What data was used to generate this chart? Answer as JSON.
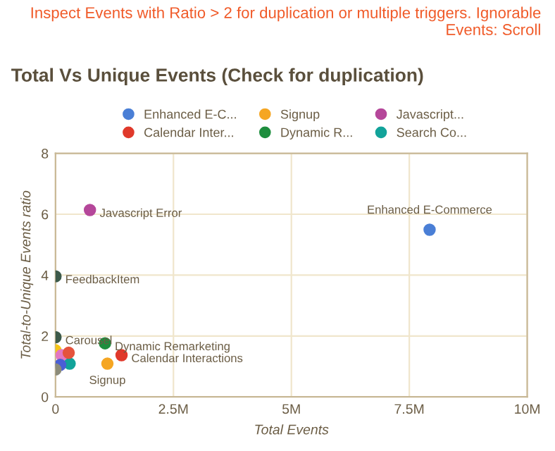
{
  "chart_data": {
    "type": "scatter",
    "title": "Total Vs Unique Events (Check for duplication)",
    "xlabel": "Total Events",
    "ylabel": "Total-to-Unique Events ratio",
    "annotations": [
      "Inspect Events with Ratio > 2 for duplication or multiple triggers. Ignorable Events: Scroll",
      {
        "text": "Enhanced E-Commerce",
        "x": 7930000,
        "y": 5.49
      },
      {
        "text": "Javascript Error",
        "x": 730000,
        "y": 6.14
      },
      {
        "text": "FeedbackItem",
        "x": 0,
        "y": 3.96
      },
      {
        "text": "Carousel",
        "x": 0,
        "y": 1.96
      },
      {
        "text": "Dynamic Remarketing",
        "x": 1050000,
        "y": 1.76
      },
      {
        "text": "Calendar Interactions",
        "x": 1400000,
        "y": 1.37
      },
      {
        "text": "Signup",
        "x": 1100000,
        "y": 1.09
      }
    ],
    "series": [
      {
        "name": "Enhanced E-C...",
        "color": "#4a7fd6",
        "x": [
          7930000
        ],
        "values": [
          5.49
        ]
      },
      {
        "name": "Calendar Inter...",
        "color": "#e0392b",
        "x": [
          1400000
        ],
        "values": [
          1.37
        ]
      },
      {
        "name": "Signup",
        "color": "#f5a623",
        "x": [
          1100000
        ],
        "values": [
          1.09
        ]
      },
      {
        "name": "Dynamic R...",
        "color": "#1e8e3e",
        "x": [
          1050000
        ],
        "values": [
          1.76
        ]
      },
      {
        "name": "Javascript...",
        "color": "#b5479a",
        "x": [
          730000
        ],
        "values": [
          6.14
        ]
      },
      {
        "name": "Search Co...",
        "color": "#12a39a",
        "x": [
          300000
        ],
        "values": [
          1.09
        ]
      },
      {
        "colors": [
          "#3d5a4a",
          "#3d5a4a",
          "#f5c518",
          "#e377c2",
          "#e5533d",
          "#4a5fd6",
          "#8c8c7a"
        ],
        "x": [
          0,
          0,
          0,
          130000,
          280000,
          100000,
          0
        ],
        "values": [
          3.96,
          1.96,
          1.53,
          1.37,
          1.45,
          1.05,
          0.9
        ]
      }
    ],
    "xlim": [
      0,
      10000000
    ],
    "xticks": [
      {
        "value": 0,
        "label": "0"
      },
      {
        "value": 2500000,
        "label": "2.5M"
      },
      {
        "value": 5000000,
        "label": "5M"
      },
      {
        "value": 7500000,
        "label": "7.5M"
      },
      {
        "value": 10000000,
        "label": "10M"
      }
    ],
    "ylim": [
      0,
      8
    ],
    "yticks": [
      0,
      2,
      4,
      6,
      8
    ],
    "grid": true,
    "legend": "top",
    "marker": "circle"
  }
}
